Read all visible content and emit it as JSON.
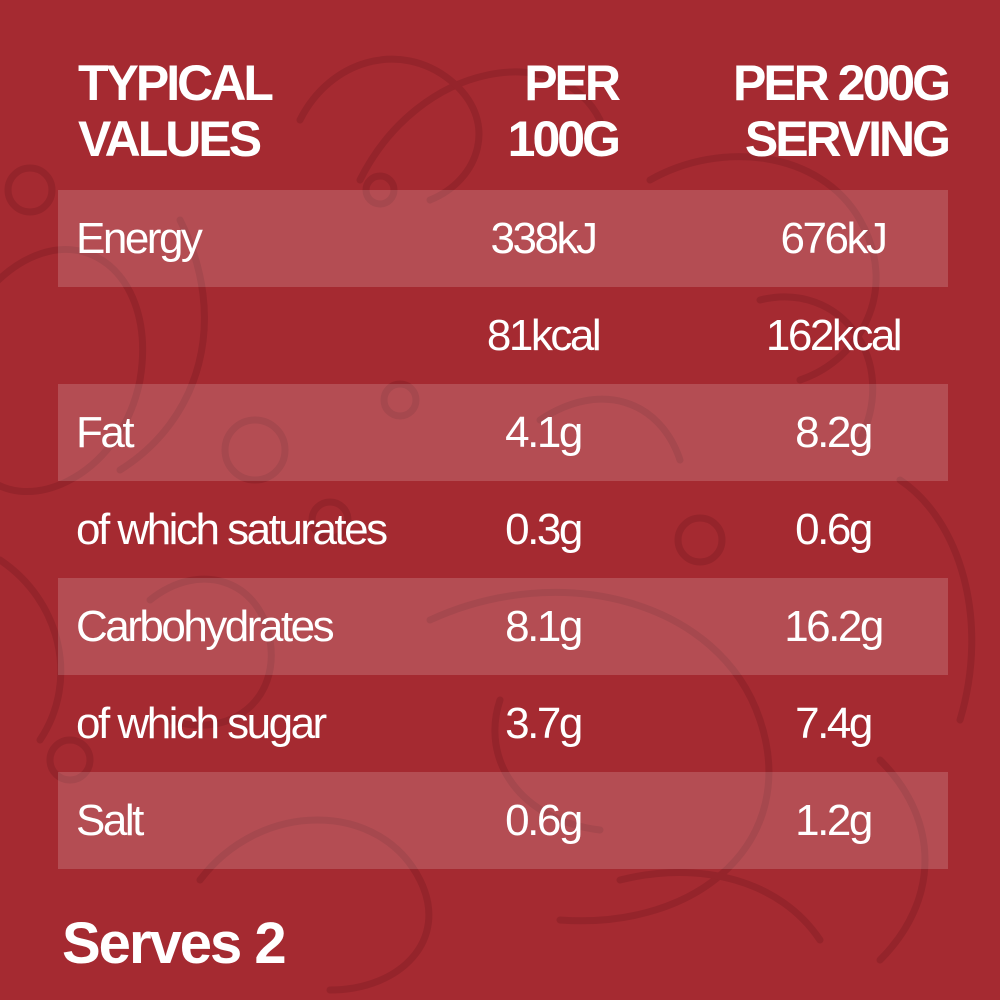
{
  "header": {
    "label_line1": "TYPICAL",
    "label_line2": "VALUES",
    "per100_line1": "PER",
    "per100_line2": "100G",
    "serving_line1": "PER 200G",
    "serving_line2": "SERVING"
  },
  "rows": [
    {
      "label": "Energy",
      "per100": "338kJ",
      "serving": "676kJ"
    },
    {
      "label": "",
      "per100": "81kcal",
      "serving": "162kcal"
    },
    {
      "label": "Fat",
      "per100": "4.1g",
      "serving": "8.2g"
    },
    {
      "label": "of which saturates",
      "per100": "0.3g",
      "serving": "0.6g"
    },
    {
      "label": "Carbohydrates",
      "per100": "8.1g",
      "serving": "16.2g"
    },
    {
      "label": "of which sugar",
      "per100": "3.7g",
      "serving": "7.4g"
    },
    {
      "label": "Salt",
      "per100": "0.6g",
      "serving": "1.2g"
    }
  ],
  "footer": {
    "serves": "Serves 2"
  },
  "colors": {
    "background": "#a52a31",
    "text": "#ffffff",
    "row_shade": "rgba(255,255,255,0.17)"
  }
}
